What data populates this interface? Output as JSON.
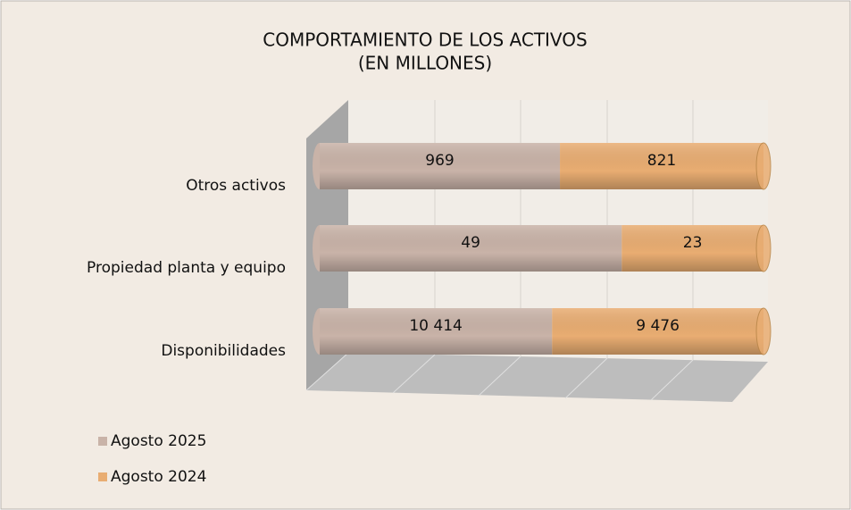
{
  "chart_data": {
    "type": "bar",
    "stacking": "percent",
    "orientation": "horizontal",
    "title": "COMPORTAMIENTO DE LOS ACTIVOS",
    "subtitle": "(EN MILLONES)",
    "categories": [
      "Otros activos",
      "Propiedad planta y equipo",
      "Disponibilidades"
    ],
    "series": [
      {
        "name": "Agosto 2025",
        "color": "#c9b3a8",
        "values": [
          969,
          49,
          10414
        ],
        "value_labels": [
          "969",
          "49",
          "10 414"
        ]
      },
      {
        "name": "Agosto 2024",
        "color": "#e9ad72",
        "values": [
          821,
          23,
          9476
        ],
        "value_labels": [
          "821",
          "23",
          "9 476"
        ]
      }
    ],
    "legend": "bottom-left"
  }
}
